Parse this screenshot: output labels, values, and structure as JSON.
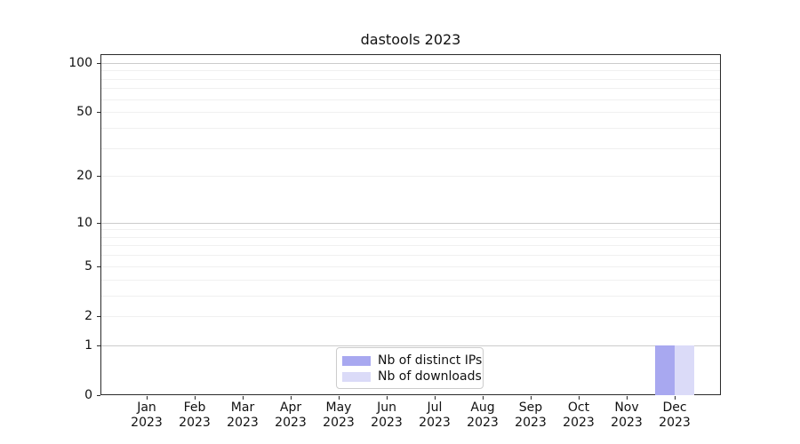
{
  "chart_data": {
    "type": "bar",
    "title": "dastools 2023",
    "categories": [
      "Jan 2023",
      "Feb 2023",
      "Mar 2023",
      "Apr 2023",
      "May 2023",
      "Jun 2023",
      "Jul 2023",
      "Aug 2023",
      "Sep 2023",
      "Oct 2023",
      "Nov 2023",
      "Dec 2023"
    ],
    "series": [
      {
        "name": "Nb of distinct IPs",
        "color": "#a8a8f0",
        "values": [
          0,
          0,
          0,
          0,
          0,
          0,
          0,
          0,
          0,
          0,
          0,
          1
        ]
      },
      {
        "name": "Nb of downloads",
        "color": "#dbdbf8",
        "values": [
          0,
          0,
          0,
          0,
          0,
          0,
          0,
          0,
          0,
          0,
          0,
          1
        ]
      }
    ],
    "yticks": [
      0,
      1,
      2,
      5,
      10,
      20,
      50,
      100
    ],
    "yscale": "log1p",
    "ylim": [
      0,
      111
    ],
    "xlabel": "",
    "ylabel": "",
    "grid": "horizontal",
    "grid_major_values": [
      1,
      10,
      100
    ],
    "grid_minor_values": [
      2,
      3,
      4,
      5,
      6,
      7,
      8,
      9,
      20,
      30,
      40,
      50,
      60,
      70,
      80,
      90
    ],
    "legend_position": "lower center",
    "background": "#ffffff",
    "grid_major_color": "#cbcbcb",
    "grid_minor_color": "#f0f0f0",
    "bar_values_dec": {
      "distinct_ips": 1,
      "downloads": 1
    }
  }
}
